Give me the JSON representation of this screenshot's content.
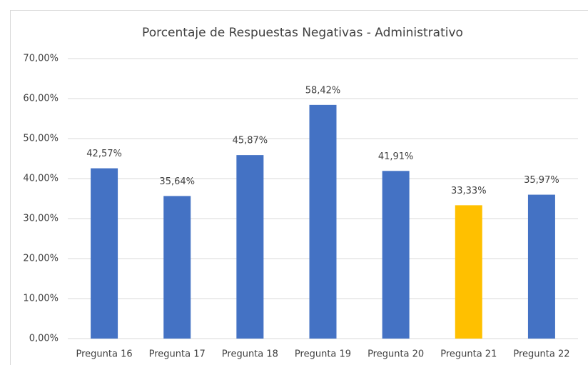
{
  "chart_data": {
    "type": "bar",
    "title": "Porcentaje de Respuestas Negativas - Administrativo",
    "categories": [
      "Pregunta 16",
      "Pregunta 17",
      "Pregunta 18",
      "Pregunta 19",
      "Pregunta 20",
      "Pregunta 21",
      "Pregunta 22"
    ],
    "values": [
      42.57,
      35.64,
      45.87,
      58.42,
      41.91,
      33.33,
      35.97
    ],
    "value_labels": [
      "42,57%",
      "35,64%",
      "45,87%",
      "58,42%",
      "41,91%",
      "33,33%",
      "35,97%"
    ],
    "colors": [
      "#4472c4",
      "#4472c4",
      "#4472c4",
      "#4472c4",
      "#4472c4",
      "#ffc000",
      "#4472c4"
    ],
    "ylim": [
      0,
      70
    ],
    "yticks": [
      {
        "value": 0,
        "label": "0,00%"
      },
      {
        "value": 10,
        "label": "10,00%"
      },
      {
        "value": 20,
        "label": "20,00%"
      },
      {
        "value": 30,
        "label": "30,00%"
      },
      {
        "value": 40,
        "label": "40,00%"
      },
      {
        "value": 50,
        "label": "50,00%"
      },
      {
        "value": 60,
        "label": "60,00%"
      },
      {
        "value": 70,
        "label": "70,00%"
      }
    ],
    "grid": true
  }
}
